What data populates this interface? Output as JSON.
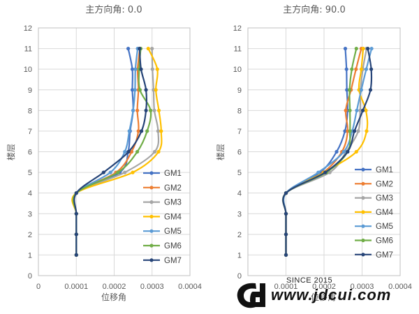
{
  "chart_data": [
    {
      "type": "line",
      "title": "主方向角: 0.0",
      "xlabel": "位移角",
      "ylabel": "楼层",
      "xlim": [
        0,
        0.0004
      ],
      "ylim": [
        0,
        12
      ],
      "xticks": [
        "0",
        "0.0001",
        "0.0002",
        "0.0003",
        "0.0004"
      ],
      "yticks": [
        "0",
        "1",
        "2",
        "3",
        "4",
        "5",
        "6",
        "7",
        "8",
        "9",
        "10",
        "11",
        "12"
      ],
      "y": [
        1,
        2,
        3,
        4,
        5,
        6,
        7,
        8,
        9,
        10,
        11
      ],
      "grid": true,
      "legend": "bottom-right",
      "series": [
        {
          "name": "GM1",
          "color": "#4472C4",
          "values": [
            0.0001,
            0.0001,
            0.0001,
            0.0001,
            0.000215,
            0.000237,
            0.000242,
            0.00025,
            0.000248,
            0.000248,
            0.000237
          ]
        },
        {
          "name": "GM2",
          "color": "#ED7D31",
          "values": [
            0.0001,
            0.0001,
            0.0001,
            0.0001,
            0.000205,
            0.000246,
            0.000264,
            0.000261,
            0.000264,
            0.000262,
            0.000268
          ]
        },
        {
          "name": "GM3",
          "color": "#A5A5A5",
          "values": [
            0.0001,
            0.0001,
            0.0001,
            0.0001,
            0.000228,
            0.000307,
            0.000316,
            0.000306,
            0.000304,
            0.000301,
            0.0003
          ]
        },
        {
          "name": "GM4",
          "color": "#FFC000",
          "values": [
            0.0001,
            0.0001,
            0.0001,
            0.0001,
            0.000249,
            0.000317,
            0.000324,
            0.000318,
            0.00031,
            0.000314,
            0.00029
          ]
        },
        {
          "name": "GM5",
          "color": "#5B9BD5",
          "values": [
            0.0001,
            0.0001,
            0.0001,
            0.0001,
            0.00019,
            0.000228,
            0.00024,
            0.00025,
            0.000255,
            0.000256,
            0.000262
          ]
        },
        {
          "name": "GM6",
          "color": "#70AD47",
          "values": [
            0.0001,
            0.0001,
            0.0001,
            0.0001,
            0.00021,
            0.000261,
            0.000287,
            0.000296,
            0.000268,
            0.000266,
            0.00027
          ]
        },
        {
          "name": "GM7",
          "color": "#264478",
          "values": [
            0.0001,
            0.0001,
            0.0001,
            0.0001,
            0.000172,
            0.000238,
            0.000272,
            0.000284,
            0.000284,
            0.000271,
            0.000267
          ]
        }
      ]
    },
    {
      "type": "line",
      "title": "主方向角: 90.0",
      "xlabel": "位移角",
      "ylabel": "楼层",
      "xlim": [
        0,
        0.0004
      ],
      "ylim": [
        0,
        12
      ],
      "xticks": [
        "0",
        "0.0001",
        "0.0002",
        "0.0003",
        "0.0004"
      ],
      "yticks": [
        "0",
        "1",
        "2",
        "3",
        "4",
        "5",
        "6",
        "7",
        "8",
        "9",
        "10",
        "11",
        "12"
      ],
      "y": [
        1,
        2,
        3,
        4,
        5,
        6,
        7,
        8,
        9,
        10,
        11
      ],
      "grid": true,
      "legend": "bottom-right",
      "series": [
        {
          "name": "GM1",
          "color": "#4472C4",
          "values": [
            0.0001,
            0.0001,
            0.0001,
            0.0001,
            0.00019,
            0.000233,
            0.000255,
            0.000262,
            0.00026,
            0.000259,
            0.000256
          ]
        },
        {
          "name": "GM2",
          "color": "#ED7D31",
          "values": [
            0.0001,
            0.0001,
            0.0001,
            0.0001,
            0.000198,
            0.000247,
            0.000262,
            0.000257,
            0.000271,
            0.000284,
            0.000298
          ]
        },
        {
          "name": "GM3",
          "color": "#A5A5A5",
          "values": [
            0.0001,
            0.0001,
            0.0001,
            0.0001,
            0.000215,
            0.000258,
            0.00029,
            0.000295,
            0.000296,
            0.000302,
            0.000312
          ]
        },
        {
          "name": "GM4",
          "color": "#FFC000",
          "values": [
            0.0001,
            0.0001,
            0.0001,
            0.0001,
            0.0002,
            0.000285,
            0.000312,
            0.00031,
            0.000292,
            0.000298,
            0.000303
          ]
        },
        {
          "name": "GM5",
          "color": "#5B9BD5",
          "values": [
            0.0001,
            0.0001,
            0.0001,
            0.0001,
            0.000185,
            0.000252,
            0.000274,
            0.000286,
            0.000298,
            0.000311,
            0.000325
          ]
        },
        {
          "name": "GM6",
          "color": "#70AD47",
          "values": [
            0.0001,
            0.0001,
            0.0001,
            0.0001,
            0.000206,
            0.000262,
            0.000268,
            0.000268,
            0.000267,
            0.000273,
            0.000285
          ]
        },
        {
          "name": "GM7",
          "color": "#264478",
          "values": [
            0.0001,
            0.0001,
            0.0001,
            0.0001,
            0.000203,
            0.000262,
            0.00028,
            0.000302,
            0.000322,
            0.000324,
            0.000315
          ]
        }
      ]
    }
  ],
  "watermark": {
    "since": "SINCE 2015",
    "url": "www.jdcui.com",
    "logo_text": "CD"
  }
}
